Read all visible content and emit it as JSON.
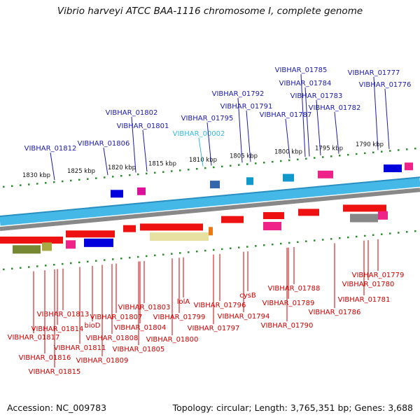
{
  "title": "Vibrio harveyi ATCC BAA-1116 chromosome I, complete genome",
  "footer": {
    "accession": "Accession: NC_009783",
    "stats": "Topology: circular; Length: 3,765,351 bp; Genes: 3,688"
  },
  "colors": {
    "forward_label": "#1a1aaa",
    "highlight_label": "#33bbdd",
    "reverse_label": "#cc0000",
    "backbone": "#44b8e6",
    "backbone_shadow": "#888888",
    "tick": "#2e8b2e"
  },
  "scale_labels": [
    "1830 kbp",
    "1825 kbp",
    "1820 kbp",
    "1815 kbp",
    "1810 kbp",
    "1805 kbp",
    "1800 kbp",
    "1795 kbp",
    "1790 kbp"
  ],
  "forward_labels": [
    "VIBHAR_01812",
    "VIBHAR_01806",
    "VIBHAR_01802",
    "VIBHAR_01801",
    "VIBHAR_00002",
    "VIBHAR_01795",
    "VIBHAR_01792",
    "VIBHAR_01791",
    "VIBHAR_01787",
    "VIBHAR_01785",
    "VIBHAR_01784",
    "VIBHAR_01783",
    "VIBHAR_01782",
    "VIBHAR_01777",
    "VIBHAR_01776"
  ],
  "highlight_label": "VIBHAR_00002",
  "reverse_labels": [
    "VIBHAR_01779",
    "VIBHAR_01780",
    "VIBHAR_01781",
    "VIBHAR_01786",
    "VIBHAR_01788",
    "VIBHAR_01789",
    "VIBHAR_01790",
    "cysB",
    "VIBHAR_01794",
    "VIBHAR_01796",
    "VIBHAR_01797",
    "lolA",
    "VIBHAR_01799",
    "VIBHAR_01800",
    "VIBHAR_01803",
    "VIBHAR_01804",
    "VIBHAR_01805",
    "VIBHAR_01807",
    "bioD",
    "VIBHAR_01808",
    "VIBHAR_01809",
    "VIBHAR_01811",
    "VIBHAR_01813",
    "VIBHAR_01814",
    "VIBHAR_01817",
    "VIBHAR_01816",
    "VIBHAR_01815"
  ]
}
